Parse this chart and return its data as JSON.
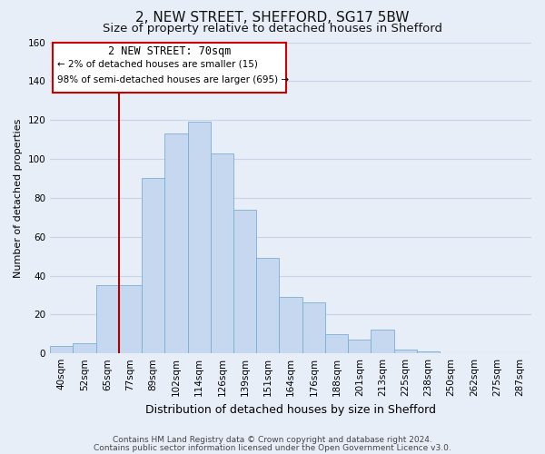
{
  "title": "2, NEW STREET, SHEFFORD, SG17 5BW",
  "subtitle": "Size of property relative to detached houses in Shefford",
  "xlabel": "Distribution of detached houses by size in Shefford",
  "ylabel": "Number of detached properties",
  "bar_labels": [
    "40sqm",
    "52sqm",
    "65sqm",
    "77sqm",
    "89sqm",
    "102sqm",
    "114sqm",
    "126sqm",
    "139sqm",
    "151sqm",
    "164sqm",
    "176sqm",
    "188sqm",
    "201sqm",
    "213sqm",
    "225sqm",
    "238sqm",
    "250sqm",
    "262sqm",
    "275sqm",
    "287sqm"
  ],
  "bar_values": [
    4,
    5,
    35,
    35,
    90,
    113,
    119,
    103,
    74,
    49,
    29,
    26,
    10,
    7,
    12,
    2,
    1,
    0,
    0,
    0,
    0
  ],
  "bar_color": "#c5d8f0",
  "bar_edge_color": "#7aaed6",
  "highlight_line_color": "#aa0000",
  "ylim": [
    0,
    160
  ],
  "yticks": [
    0,
    20,
    40,
    60,
    80,
    100,
    120,
    140,
    160
  ],
  "annotation_title": "2 NEW STREET: 70sqm",
  "annotation_line1": "← 2% of detached houses are smaller (15)",
  "annotation_line2": "98% of semi-detached houses are larger (695) →",
  "annotation_box_color": "#ffffff",
  "annotation_box_edge": "#cc0000",
  "footnote1": "Contains HM Land Registry data © Crown copyright and database right 2024.",
  "footnote2": "Contains public sector information licensed under the Open Government Licence v3.0.",
  "bg_color": "#e8eef8",
  "grid_color": "#c8d4e8",
  "title_fontsize": 11,
  "subtitle_fontsize": 9.5,
  "xlabel_fontsize": 9,
  "ylabel_fontsize": 8,
  "tick_fontsize": 7.5,
  "annotation_title_fontsize": 8.5,
  "annotation_text_fontsize": 7.5,
  "footnote_fontsize": 6.5
}
